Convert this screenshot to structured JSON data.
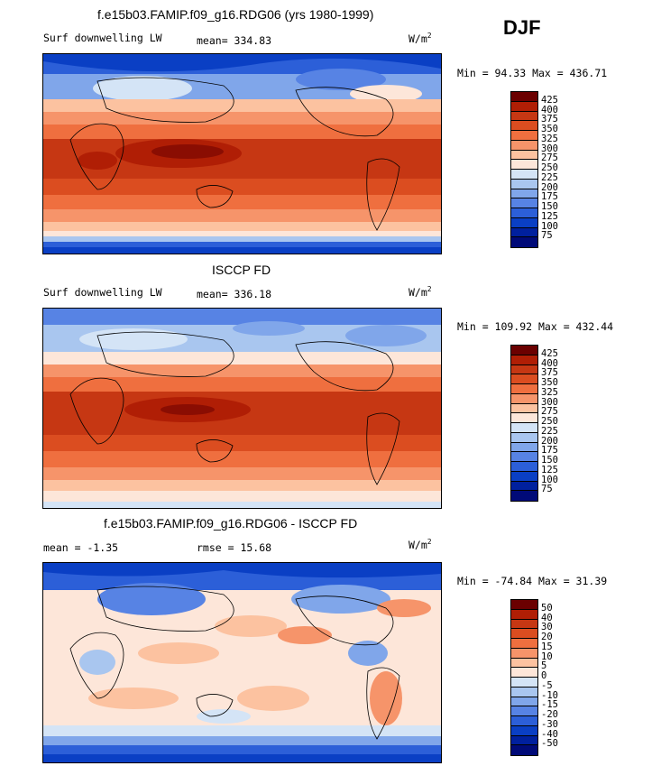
{
  "season": "DJF",
  "panels": [
    {
      "title": "f.e15b03.FAMIP.f09_g16.RDG06 (yrs 1980-1999)",
      "left_label": "Surf downwelling LW",
      "mid_label": "mean= 334.83",
      "units": "W/m",
      "units_sup": "2",
      "minmax": "Min =  94.33 Max = 436.71",
      "colorbar": {
        "colors": [
          "#6b0000",
          "#b01e05",
          "#c63713",
          "#db4d20",
          "#ef6f3f",
          "#f6946a",
          "#fcc2a0",
          "#fde6d9",
          "#d4e4f6",
          "#a9c6ef",
          "#80a6ea",
          "#5783e4",
          "#2c5fd8",
          "#0a3fc4",
          "#00209e",
          "#000a78"
        ],
        "labels": [
          "425",
          "400",
          "375",
          "350",
          "325",
          "300",
          "275",
          "250",
          "225",
          "200",
          "175",
          "150",
          "125",
          "100",
          "75"
        ]
      }
    },
    {
      "title": "ISCCP FD",
      "left_label": "Surf downwelling LW",
      "mid_label": "mean= 336.18",
      "units": "W/m",
      "units_sup": "2",
      "minmax": "Min = 109.92 Max = 432.44",
      "colorbar": {
        "colors": [
          "#6b0000",
          "#b01e05",
          "#c63713",
          "#db4d20",
          "#ef6f3f",
          "#f6946a",
          "#fcc2a0",
          "#fde6d9",
          "#d4e4f6",
          "#a9c6ef",
          "#80a6ea",
          "#5783e4",
          "#2c5fd8",
          "#0a3fc4",
          "#00209e",
          "#000a78"
        ],
        "labels": [
          "425",
          "400",
          "375",
          "350",
          "325",
          "300",
          "275",
          "250",
          "225",
          "200",
          "175",
          "150",
          "125",
          "100",
          "75"
        ]
      }
    },
    {
      "title": "f.e15b03.FAMIP.f09_g16.RDG06 - ISCCP FD",
      "left_label": "mean =  -1.35",
      "mid_label": "rmse =  15.68",
      "units": "W/m",
      "units_sup": "2",
      "minmax": "Min = -74.84 Max =  31.39",
      "colorbar": {
        "colors": [
          "#6b0000",
          "#b01e05",
          "#c63713",
          "#db4d20",
          "#ef6f3f",
          "#f6946a",
          "#fcc2a0",
          "#fde6d9",
          "#d4e4f6",
          "#a9c6ef",
          "#80a6ea",
          "#5783e4",
          "#2c5fd8",
          "#0a3fc4",
          "#00209e",
          "#000a78"
        ],
        "labels": [
          "50",
          "40",
          "30",
          "20",
          "15",
          "10",
          "5",
          "0",
          "-5",
          "-10",
          "-15",
          "-20",
          "-30",
          "-40",
          "-50"
        ]
      }
    }
  ]
}
